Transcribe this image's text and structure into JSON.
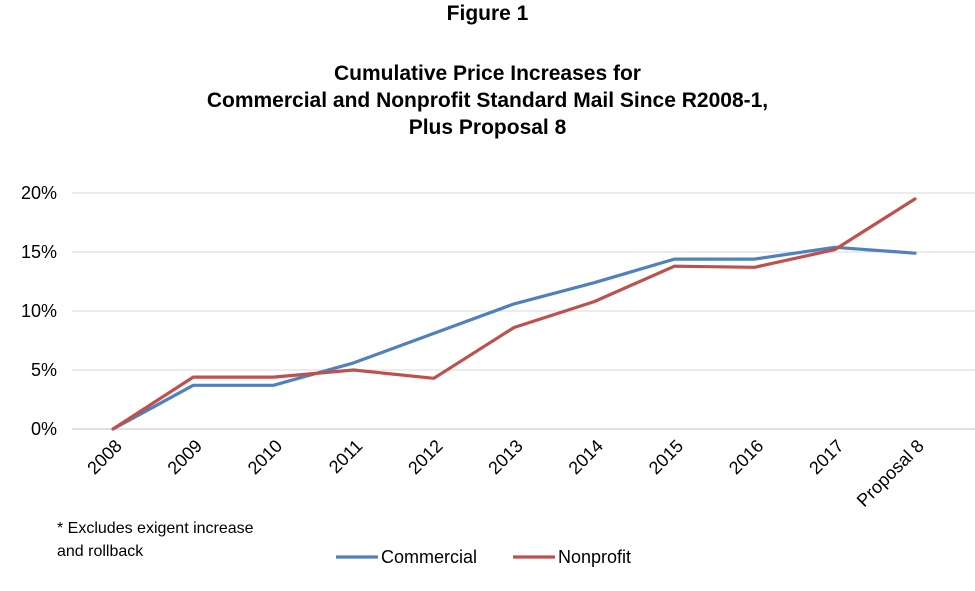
{
  "figure_label": "Figure 1",
  "footnote": [
    "* Excludes exigent increase",
    "and rollback"
  ],
  "colors": {
    "commercial": "#4F81BD",
    "nonprofit": "#C0504D",
    "grid": "#D9D9D9"
  },
  "chart_data": {
    "type": "line",
    "title": [
      "Cumulative Price Increases for",
      "Commercial and Nonprofit Standard Mail Since R2008-1,",
      "Plus Proposal 8"
    ],
    "categories": [
      "2008",
      "2009",
      "2010",
      "2011",
      "2012",
      "2013",
      "2014",
      "2015",
      "2016",
      "2017",
      "Proposal 8"
    ],
    "series": [
      {
        "name": "Commercial",
        "values": [
          0,
          3.7,
          3.7,
          5.6,
          8.1,
          10.6,
          12.4,
          14.4,
          14.4,
          15.4,
          14.9
        ]
      },
      {
        "name": "Nonprofit",
        "values": [
          0,
          4.4,
          4.4,
          5.0,
          4.3,
          8.6,
          10.8,
          13.8,
          13.7,
          15.2,
          19.5
        ]
      }
    ],
    "ylim": [
      0,
      20
    ],
    "yticks": [
      "0%",
      "5%",
      "10%",
      "15%",
      "20%"
    ],
    "xlabel": "",
    "ylabel": "",
    "grid": true,
    "legend": "bottom"
  }
}
